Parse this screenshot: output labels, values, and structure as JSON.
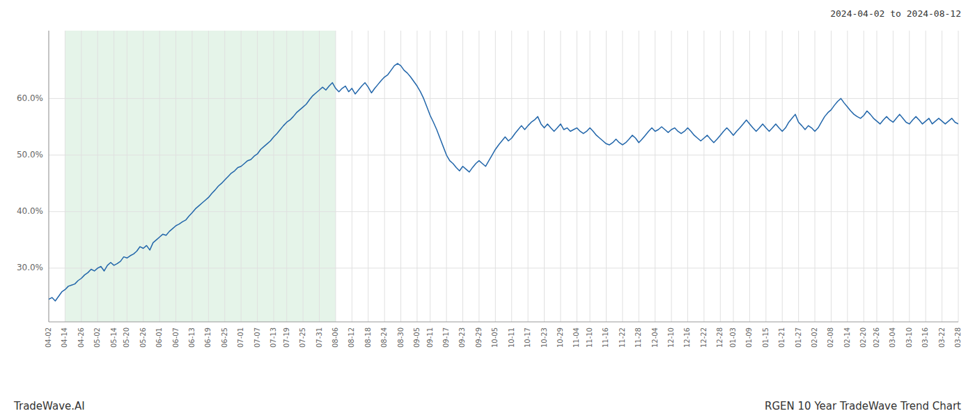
{
  "chart_data": {
    "type": "line",
    "title": "RGEN 10 Year TradeWave Trend Chart",
    "subtitle": "2024-04-02 to 2024-08-12",
    "annotations": [
      "TradeWave.AI"
    ],
    "color": "#2266aa",
    "grid": true,
    "highlight": {
      "from": "04-14",
      "to": "08-06",
      "color": "#d4edda"
    },
    "ylim": [
      0.205,
      0.72
    ],
    "yticks": [
      {
        "value": 0.3,
        "label": "30.0%"
      },
      {
        "value": 0.4,
        "label": "40.0%"
      },
      {
        "value": 0.5,
        "label": "50.0%"
      },
      {
        "value": 0.6,
        "label": "60.0%"
      }
    ],
    "categories": [
      "04-02",
      null,
      null,
      null,
      null,
      "04-14",
      null,
      null,
      null,
      null,
      "04-26",
      null,
      null,
      null,
      null,
      "05-02",
      null,
      null,
      null,
      null,
      "05-14",
      null,
      null,
      null,
      "05-20",
      null,
      null,
      null,
      null,
      "05-26",
      null,
      null,
      null,
      null,
      "06-01",
      null,
      null,
      null,
      null,
      "06-07",
      null,
      null,
      null,
      null,
      "06-13",
      null,
      null,
      null,
      null,
      "06-19",
      null,
      null,
      null,
      null,
      "06-25",
      null,
      null,
      null,
      null,
      "07-01",
      null,
      null,
      null,
      null,
      "07-07",
      null,
      null,
      null,
      null,
      "07-13",
      null,
      null,
      null,
      "07-19",
      null,
      null,
      null,
      null,
      "07-25",
      null,
      null,
      null,
      null,
      "07-31",
      null,
      null,
      null,
      null,
      "08-06",
      null,
      null,
      null,
      null,
      "08-12",
      null,
      null,
      null,
      null,
      "08-18",
      null,
      null,
      null,
      null,
      "08-24",
      null,
      null,
      null,
      null,
      "08-30",
      null,
      null,
      null,
      null,
      "09-05",
      null,
      null,
      null,
      "09-11",
      null,
      null,
      null,
      null,
      "09-17",
      null,
      null,
      null,
      null,
      "09-23",
      null,
      null,
      null,
      null,
      "09-29",
      null,
      null,
      null,
      null,
      "10-05",
      null,
      null,
      null,
      null,
      "10-11",
      null,
      null,
      null,
      null,
      "10-17",
      null,
      null,
      null,
      null,
      "10-23",
      null,
      null,
      null,
      null,
      "10-29",
      null,
      null,
      null,
      null,
      "11-04",
      null,
      null,
      null,
      "11-10",
      null,
      null,
      null,
      null,
      "11-16",
      null,
      null,
      null,
      null,
      "11-22",
      null,
      null,
      null,
      null,
      "11-28",
      null,
      null,
      null,
      null,
      "12-04",
      null,
      null,
      null,
      null,
      "12-10",
      null,
      null,
      null,
      null,
      "12-16",
      null,
      null,
      null,
      null,
      "12-22",
      null,
      null,
      null,
      null,
      "12-28",
      null,
      null,
      null,
      "01-03",
      null,
      null,
      null,
      null,
      "01-09",
      null,
      null,
      null,
      null,
      "01-15",
      null,
      null,
      null,
      null,
      "01-21",
      null,
      null,
      null,
      null,
      "01-27",
      null,
      null,
      null,
      null,
      "02-02",
      null,
      null,
      null,
      null,
      "02-08",
      null,
      null,
      null,
      null,
      "02-14",
      null,
      null,
      null,
      null,
      "02-20",
      null,
      null,
      null,
      "02-26",
      null,
      null,
      null,
      null,
      "03-04",
      null,
      null,
      null,
      null,
      "03-10",
      null,
      null,
      null,
      null,
      "03-16",
      null,
      null,
      null,
      null,
      "03-22",
      null,
      null,
      null,
      null,
      "03-28"
    ],
    "values": [
      0.245,
      0.248,
      0.242,
      0.25,
      0.258,
      0.262,
      0.268,
      0.27,
      0.272,
      0.278,
      0.282,
      0.288,
      0.292,
      0.298,
      0.295,
      0.3,
      0.303,
      0.295,
      0.305,
      0.31,
      0.305,
      0.308,
      0.312,
      0.32,
      0.318,
      0.322,
      0.325,
      0.33,
      0.338,
      0.335,
      0.34,
      0.332,
      0.345,
      0.35,
      0.355,
      0.36,
      0.358,
      0.365,
      0.37,
      0.375,
      0.378,
      0.382,
      0.385,
      0.392,
      0.398,
      0.405,
      0.41,
      0.415,
      0.42,
      0.425,
      0.432,
      0.438,
      0.445,
      0.45,
      0.456,
      0.462,
      0.468,
      0.472,
      0.478,
      0.48,
      0.485,
      0.49,
      0.492,
      0.498,
      0.502,
      0.51,
      0.515,
      0.52,
      0.525,
      0.532,
      0.538,
      0.545,
      0.552,
      0.558,
      0.562,
      0.568,
      0.575,
      0.58,
      0.585,
      0.59,
      0.598,
      0.605,
      0.61,
      0.615,
      0.62,
      0.615,
      0.622,
      0.628,
      0.618,
      0.612,
      0.618,
      0.622,
      0.612,
      0.618,
      0.608,
      0.615,
      0.622,
      0.628,
      0.62,
      0.61,
      0.618,
      0.625,
      0.632,
      0.638,
      0.642,
      0.65,
      0.658,
      0.662,
      0.658,
      0.65,
      0.645,
      0.638,
      0.63,
      0.622,
      0.612,
      0.6,
      0.585,
      0.57,
      0.558,
      0.545,
      0.53,
      0.515,
      0.5,
      0.49,
      0.485,
      0.478,
      0.472,
      0.48,
      0.475,
      0.47,
      0.478,
      0.485,
      0.49,
      0.485,
      0.48,
      0.49,
      0.5,
      0.51,
      0.518,
      0.525,
      0.532,
      0.525,
      0.53,
      0.538,
      0.545,
      0.552,
      0.545,
      0.552,
      0.558,
      0.562,
      0.568,
      0.555,
      0.548,
      0.555,
      0.548,
      0.542,
      0.548,
      0.555,
      0.545,
      0.548,
      0.542,
      0.545,
      0.548,
      0.542,
      0.538,
      0.542,
      0.548,
      0.542,
      0.535,
      0.53,
      0.525,
      0.52,
      0.518,
      0.522,
      0.528,
      0.522,
      0.518,
      0.522,
      0.528,
      0.535,
      0.53,
      0.522,
      0.528,
      0.535,
      0.542,
      0.548,
      0.542,
      0.545,
      0.55,
      0.545,
      0.54,
      0.545,
      0.548,
      0.542,
      0.538,
      0.542,
      0.548,
      0.542,
      0.535,
      0.53,
      0.525,
      0.53,
      0.535,
      0.528,
      0.522,
      0.528,
      0.535,
      0.542,
      0.548,
      0.542,
      0.535,
      0.542,
      0.548,
      0.555,
      0.562,
      0.555,
      0.548,
      0.542,
      0.548,
      0.555,
      0.548,
      0.542,
      0.548,
      0.555,
      0.548,
      0.542,
      0.548,
      0.558,
      0.565,
      0.572,
      0.558,
      0.552,
      0.545,
      0.552,
      0.548,
      0.542,
      0.548,
      0.558,
      0.568,
      0.575,
      0.58,
      0.588,
      0.595,
      0.6,
      0.592,
      0.585,
      0.578,
      0.572,
      0.568,
      0.565,
      0.57,
      0.578,
      0.572,
      0.565,
      0.56,
      0.555,
      0.562,
      0.568,
      0.562,
      0.558,
      0.565,
      0.572,
      0.565,
      0.558,
      0.555,
      0.562,
      0.568,
      0.562,
      0.555,
      0.56,
      0.565,
      0.555,
      0.56,
      0.565,
      0.56,
      0.555,
      0.56,
      0.565,
      0.558,
      0.555
    ]
  }
}
